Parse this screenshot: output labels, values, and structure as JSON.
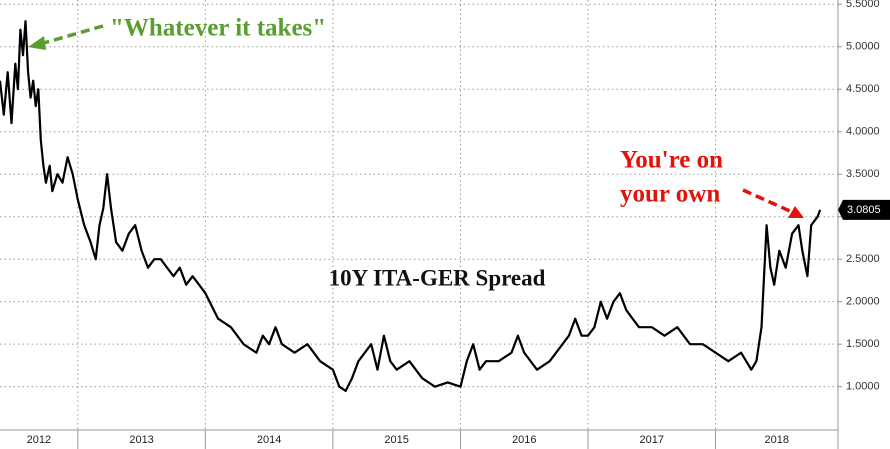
{
  "chart_data": {
    "type": "line",
    "title": "10Y ITA-GER Spread",
    "annotations": [
      {
        "lines": [
          "\"Whatever it takes\""
        ],
        "color": "#5a9e2f"
      },
      {
        "lines": [
          "You're on",
          "your own"
        ],
        "color": "#e3120b"
      }
    ],
    "xlim": [
      2012.39,
      2018.96
    ],
    "xticks": [
      {
        "value": 2012,
        "label": "2012"
      },
      {
        "value": 2013,
        "label": "2013"
      },
      {
        "value": 2014,
        "label": "2014"
      },
      {
        "value": 2015,
        "label": "2015"
      },
      {
        "value": 2016,
        "label": "2016"
      },
      {
        "value": 2017,
        "label": "2017"
      },
      {
        "value": 2018,
        "label": "2018"
      }
    ],
    "ylim": [
      0.49,
      5.55
    ],
    "yticks": [
      {
        "value": 1,
        "label": "1.0000"
      },
      {
        "value": 1.5,
        "label": "1.5000"
      },
      {
        "value": 2,
        "label": "2.0000"
      },
      {
        "value": 2.5,
        "label": "2.5000"
      },
      {
        "value": 3,
        "label": "3.0000"
      },
      {
        "value": 3.5,
        "label": "3.5000"
      },
      {
        "value": 4,
        "label": "4.0000"
      },
      {
        "value": 4.5,
        "label": "4.5000"
      },
      {
        "value": 5,
        "label": "5.0000"
      },
      {
        "value": 5.5,
        "label": "5.5000"
      }
    ],
    "grid": true,
    "last_value": 3.0805,
    "series": [
      {
        "color": "#000000",
        "x": [
          2012.39,
          2012.42,
          2012.45,
          2012.48,
          2012.51,
          2012.53,
          2012.55,
          2012.57,
          2012.59,
          2012.61,
          2012.63,
          2012.65,
          2012.67,
          2012.69,
          2012.71,
          2012.73,
          2012.75,
          2012.78,
          2012.8,
          2012.84,
          2012.88,
          2012.92,
          2012.96,
          2013.0,
          2013.05,
          2013.1,
          2013.14,
          2013.17,
          2013.2,
          2013.23,
          2013.26,
          2013.3,
          2013.35,
          2013.4,
          2013.45,
          2013.5,
          2013.55,
          2013.6,
          2013.65,
          2013.7,
          2013.75,
          2013.8,
          2013.85,
          2013.9,
          2014.0,
          2014.1,
          2014.2,
          2014.3,
          2014.4,
          2014.45,
          2014.5,
          2014.55,
          2014.6,
          2014.7,
          2014.8,
          2014.85,
          2014.9,
          2015.0,
          2015.05,
          2015.1,
          2015.15,
          2015.2,
          2015.3,
          2015.35,
          2015.4,
          2015.45,
          2015.5,
          2015.6,
          2015.7,
          2015.8,
          2015.9,
          2016.0,
          2016.05,
          2016.1,
          2016.15,
          2016.2,
          2016.3,
          2016.4,
          2016.45,
          2016.5,
          2016.6,
          2016.7,
          2016.8,
          2016.85,
          2016.9,
          2016.95,
          2017.0,
          2017.05,
          2017.1,
          2017.15,
          2017.2,
          2017.25,
          2017.3,
          2017.35,
          2017.4,
          2017.5,
          2017.6,
          2017.7,
          2017.8,
          2017.9,
          2018.0,
          2018.1,
          2018.2,
          2018.28,
          2018.32,
          2018.36,
          2018.4,
          2018.43,
          2018.46,
          2018.5,
          2018.55,
          2018.6,
          2018.65,
          2018.68,
          2018.72,
          2018.75,
          2018.8,
          2018.82
        ],
        "values": [
          4.6,
          4.2,
          4.7,
          4.1,
          4.8,
          4.5,
          5.2,
          4.9,
          5.3,
          4.7,
          4.4,
          4.6,
          4.3,
          4.5,
          3.9,
          3.6,
          3.4,
          3.6,
          3.3,
          3.5,
          3.4,
          3.7,
          3.5,
          3.2,
          2.9,
          2.7,
          2.5,
          2.9,
          3.1,
          3.5,
          3.1,
          2.7,
          2.6,
          2.8,
          2.9,
          2.6,
          2.4,
          2.5,
          2.5,
          2.4,
          2.3,
          2.4,
          2.2,
          2.3,
          2.1,
          1.8,
          1.7,
          1.5,
          1.4,
          1.6,
          1.5,
          1.7,
          1.5,
          1.4,
          1.5,
          1.4,
          1.3,
          1.2,
          1.0,
          0.95,
          1.1,
          1.3,
          1.5,
          1.2,
          1.6,
          1.3,
          1.2,
          1.3,
          1.1,
          1.0,
          1.05,
          1.0,
          1.3,
          1.5,
          1.2,
          1.3,
          1.3,
          1.4,
          1.6,
          1.4,
          1.2,
          1.3,
          1.5,
          1.6,
          1.8,
          1.6,
          1.6,
          1.7,
          2.0,
          1.8,
          2.0,
          2.1,
          1.9,
          1.8,
          1.7,
          1.7,
          1.6,
          1.7,
          1.5,
          1.5,
          1.4,
          1.3,
          1.4,
          1.2,
          1.3,
          1.7,
          2.9,
          2.4,
          2.2,
          2.6,
          2.4,
          2.8,
          2.9,
          2.6,
          2.3,
          2.9,
          3.0,
          3.0805
        ]
      }
    ]
  }
}
